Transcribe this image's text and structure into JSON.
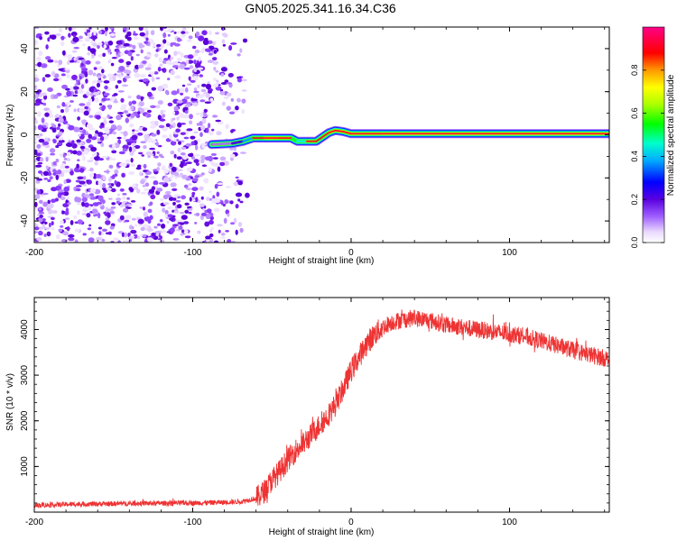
{
  "title": "GN05.2025.341.16.34.C36",
  "chart_data": [
    {
      "type": "heatmap",
      "name": "spectrogram",
      "xlabel": "Height of straight line (km)",
      "ylabel": "Frequency (Hz)",
      "xlim": [
        -200,
        163
      ],
      "ylim": [
        -50,
        50
      ],
      "xticks": [
        "-200",
        "-100",
        "0",
        "100"
      ],
      "yticks": [
        "40",
        "20",
        "0",
        "-20",
        "-40"
      ],
      "noise_region_x": [
        -200,
        -65
      ],
      "ridge": [
        {
          "x": -88,
          "f": -4.5,
          "amp": 0.15
        },
        {
          "x": -75,
          "f": -4.0,
          "amp": 0.3
        },
        {
          "x": -68,
          "f": -3.0,
          "amp": 0.5
        },
        {
          "x": -62,
          "f": -1.5,
          "amp": 0.7
        },
        {
          "x": -55,
          "f": -1.5,
          "amp": 0.95
        },
        {
          "x": -45,
          "f": -1.5,
          "amp": 0.85
        },
        {
          "x": -38,
          "f": -1.5,
          "amp": 0.7
        },
        {
          "x": -34,
          "f": -3.0,
          "amp": 0.6
        },
        {
          "x": -28,
          "f": -3.0,
          "amp": 0.8
        },
        {
          "x": -22,
          "f": -3.0,
          "amp": 0.7
        },
        {
          "x": -18,
          "f": -1.0,
          "amp": 0.8
        },
        {
          "x": -14,
          "f": 1.0,
          "amp": 0.9
        },
        {
          "x": -10,
          "f": 2.0,
          "amp": 1.0
        },
        {
          "x": -5,
          "f": 1.5,
          "amp": 0.9
        },
        {
          "x": 0,
          "f": 0.5,
          "amp": 0.9
        },
        {
          "x": 20,
          "f": 0.5,
          "amp": 0.95
        },
        {
          "x": 60,
          "f": 0.5,
          "amp": 0.95
        },
        {
          "x": 100,
          "f": 0.5,
          "amp": 0.95
        },
        {
          "x": 140,
          "f": 0.5,
          "amp": 0.95
        },
        {
          "x": 163,
          "f": 0.5,
          "amp": 0.95
        }
      ],
      "colorbar": {
        "label": "Normalized spectral amplitude",
        "ticks": [
          "0.0",
          "0.2",
          "0.4",
          "0.6",
          "0.8"
        ],
        "range": [
          0,
          1
        ]
      }
    },
    {
      "type": "line",
      "name": "snr",
      "xlabel": "Height of straight line (km)",
      "ylabel": "SNR (10 * v/v)",
      "xlim": [
        -200,
        163
      ],
      "ylim": [
        0,
        4700
      ],
      "xticks": [
        "-200",
        "-100",
        "0",
        "100"
      ],
      "yticks": [
        "1000",
        "2000",
        "3000",
        "4000"
      ],
      "series": [
        {
          "name": "SNR",
          "color": "#ee3333",
          "x": [
            -200,
            -180,
            -160,
            -140,
            -120,
            -100,
            -80,
            -70,
            -60,
            -55,
            -50,
            -45,
            -40,
            -35,
            -30,
            -25,
            -20,
            -15,
            -10,
            -5,
            0,
            5,
            10,
            15,
            20,
            25,
            30,
            40,
            50,
            60,
            70,
            80,
            90,
            100,
            110,
            120,
            130,
            140,
            150,
            163
          ],
          "y": [
            150,
            170,
            180,
            190,
            195,
            200,
            215,
            230,
            300,
            450,
            700,
            900,
            1150,
            1350,
            1500,
            1700,
            1900,
            2100,
            2350,
            2700,
            3100,
            3400,
            3700,
            3900,
            4050,
            4150,
            4200,
            4250,
            4200,
            4100,
            4050,
            4000,
            3950,
            3900,
            3850,
            3750,
            3650,
            3550,
            3450,
            3350
          ]
        }
      ]
    }
  ]
}
